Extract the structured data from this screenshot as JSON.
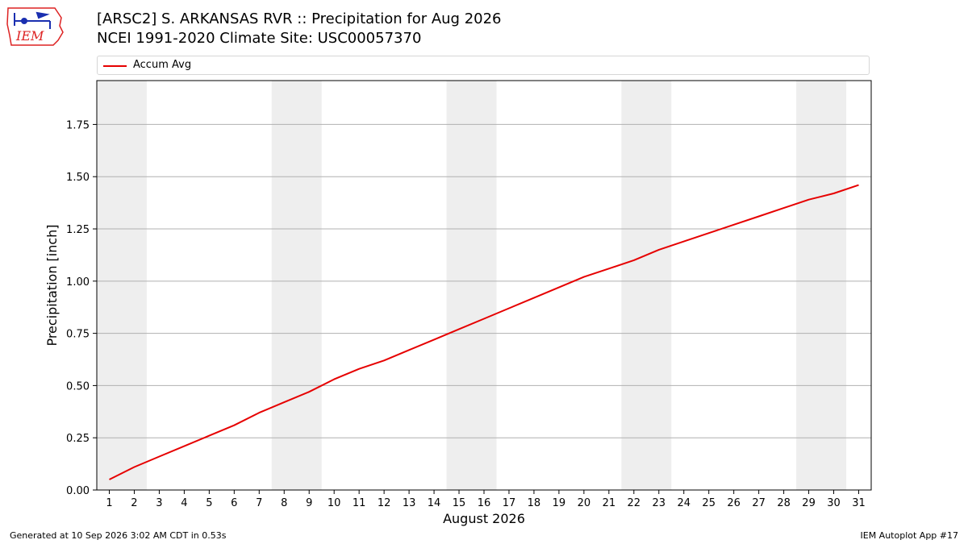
{
  "header": {
    "title_line1": "[ARSC2] S. ARKANSAS RVR :: Precipitation for Aug 2026",
    "title_line2": "NCEI 1991-2020 Climate Site: USC00057370",
    "logo_text": "IEM"
  },
  "footer": {
    "generated": "Generated at 10 Sep 2026 3:02 AM CDT in 0.53s",
    "app": "IEM Autoplot App #17"
  },
  "colors": {
    "series": "#e60000",
    "weekend_band": "#eeeeee",
    "grid": "#b0b0b0",
    "logo_red": "#d22",
    "logo_blue": "#1a2fb0"
  },
  "chart_data": {
    "type": "line",
    "title": "[ARSC2] S. ARKANSAS RVR :: Precipitation for Aug 2026",
    "xlabel": "August 2026",
    "ylabel": "Precipitation [inch]",
    "x": [
      1,
      2,
      3,
      4,
      5,
      6,
      7,
      8,
      9,
      10,
      11,
      12,
      13,
      14,
      15,
      16,
      17,
      18,
      19,
      20,
      21,
      22,
      23,
      24,
      25,
      26,
      27,
      28,
      29,
      30,
      31
    ],
    "x_ticks": [
      "1",
      "2",
      "3",
      "4",
      "5",
      "6",
      "7",
      "8",
      "9",
      "10",
      "11",
      "12",
      "13",
      "14",
      "15",
      "16",
      "17",
      "18",
      "19",
      "20",
      "21",
      "22",
      "23",
      "24",
      "25",
      "26",
      "27",
      "28",
      "29",
      "30",
      "31"
    ],
    "series": [
      {
        "name": "Accum Avg",
        "values": [
          0.05,
          0.11,
          0.16,
          0.21,
          0.26,
          0.31,
          0.37,
          0.42,
          0.47,
          0.53,
          0.58,
          0.62,
          0.67,
          0.72,
          0.77,
          0.82,
          0.87,
          0.92,
          0.97,
          1.02,
          1.06,
          1.1,
          1.15,
          1.19,
          1.23,
          1.27,
          1.31,
          1.35,
          1.39,
          1.42,
          1.46
        ]
      }
    ],
    "xlim": [
      0.5,
      31.5
    ],
    "ylim": [
      0.0,
      1.96
    ],
    "y_ticks": [
      0.0,
      0.25,
      0.5,
      0.75,
      1.0,
      1.25,
      1.5,
      1.75
    ],
    "y_tick_labels": [
      "0.00",
      "0.25",
      "0.50",
      "0.75",
      "1.00",
      "1.25",
      "1.50",
      "1.75"
    ],
    "weekend_bands": [
      [
        0.5,
        2.5
      ],
      [
        7.5,
        9.5
      ],
      [
        14.5,
        16.5
      ],
      [
        21.5,
        23.5
      ],
      [
        28.5,
        30.5
      ]
    ],
    "grid": "horizontal",
    "legend": "top"
  }
}
